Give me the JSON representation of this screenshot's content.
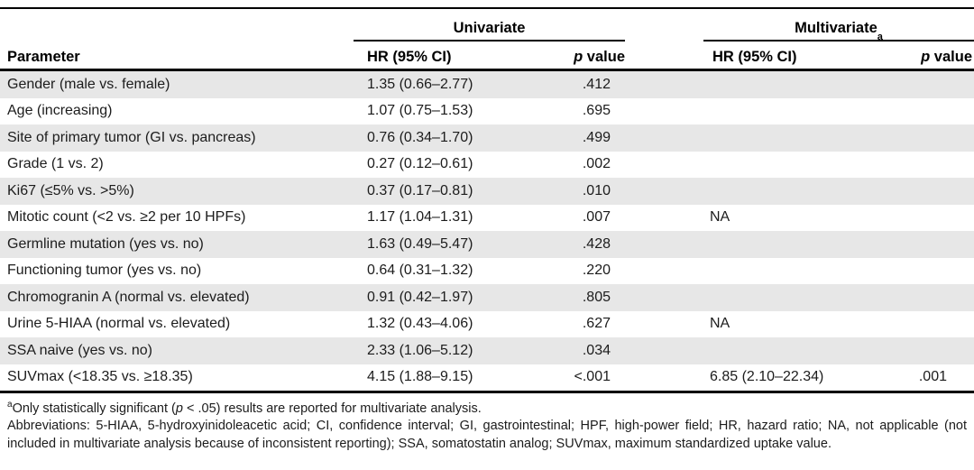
{
  "table": {
    "groups": {
      "univariate": "Univariate",
      "multivariate": "Multivariate",
      "multivariate_sup": "a"
    },
    "col_headers": {
      "parameter": "Parameter",
      "uni_hr": "HR (95% CI)",
      "multi_hr": "HR (95% CI)",
      "p_italic": "p",
      "p_rest": " value"
    },
    "rows": [
      {
        "param": "Gender (male vs. female)",
        "uni_hr": "1.35 (0.66–2.77)",
        "uni_p": ".412",
        "multi_hr": "",
        "multi_p": ""
      },
      {
        "param": "Age (increasing)",
        "uni_hr": "1.07 (0.75–1.53)",
        "uni_p": ".695",
        "multi_hr": "",
        "multi_p": ""
      },
      {
        "param": "Site of primary tumor (GI vs. pancreas)",
        "uni_hr": "0.76 (0.34–1.70)",
        "uni_p": ".499",
        "multi_hr": "",
        "multi_p": ""
      },
      {
        "param": "Grade (1 vs. 2)",
        "uni_hr": "0.27 (0.12–0.61)",
        "uni_p": ".002",
        "multi_hr": "",
        "multi_p": ""
      },
      {
        "param": "Ki67 (≤5% vs. >5%)",
        "uni_hr": "0.37 (0.17–0.81)",
        "uni_p": ".010",
        "multi_hr": "",
        "multi_p": ""
      },
      {
        "param": "Mitotic count (<2 vs. ≥2 per 10 HPFs)",
        "uni_hr": "1.17 (1.04–1.31)",
        "uni_p": ".007",
        "multi_hr": "NA",
        "multi_p": ""
      },
      {
        "param": "Germline mutation (yes vs. no)",
        "uni_hr": "1.63 (0.49–5.47)",
        "uni_p": ".428",
        "multi_hr": "",
        "multi_p": ""
      },
      {
        "param": "Functioning tumor (yes vs. no)",
        "uni_hr": "0.64 (0.31–1.32)",
        "uni_p": ".220",
        "multi_hr": "",
        "multi_p": ""
      },
      {
        "param": "Chromogranin A (normal vs. elevated)",
        "uni_hr": "0.91 (0.42–1.97)",
        "uni_p": ".805",
        "multi_hr": "",
        "multi_p": ""
      },
      {
        "param": "Urine 5-HIAA (normal vs. elevated)",
        "uni_hr": "1.32 (0.43–4.06)",
        "uni_p": ".627",
        "multi_hr": "NA",
        "multi_p": ""
      },
      {
        "param": "SSA naive (yes vs. no)",
        "uni_hr": "2.33 (1.06–5.12)",
        "uni_p": ".034",
        "multi_hr": "",
        "multi_p": ""
      },
      {
        "param": "SUVmax (<18.35 vs. ≥18.35)",
        "uni_hr": "4.15 (1.88–9.15)",
        "uni_p": "<.001",
        "multi_hr": "6.85 (2.10–22.34)",
        "multi_p": ".001"
      }
    ]
  },
  "footnotes": {
    "note_a": {
      "sup": "a",
      "pre": "Only statistically significant (",
      "p": "p",
      "post": " < .05) results are reported for multivariate analysis."
    },
    "abbreviations": "Abbreviations: 5-HIAA, 5-hydroxyinidoleacetic acid; CI, confidence interval; GI, gastrointestinal; HPF, high-power field; HR, hazard ratio; NA, not applicable (not included in multivariate analysis because of inconsistent reporting); SSA, somatostatin analog; SUVmax, maximum standardized uptake value."
  },
  "colors": {
    "row_stripe": "#e7e7e7",
    "rule": "#000000",
    "text": "#1c1c1c"
  }
}
